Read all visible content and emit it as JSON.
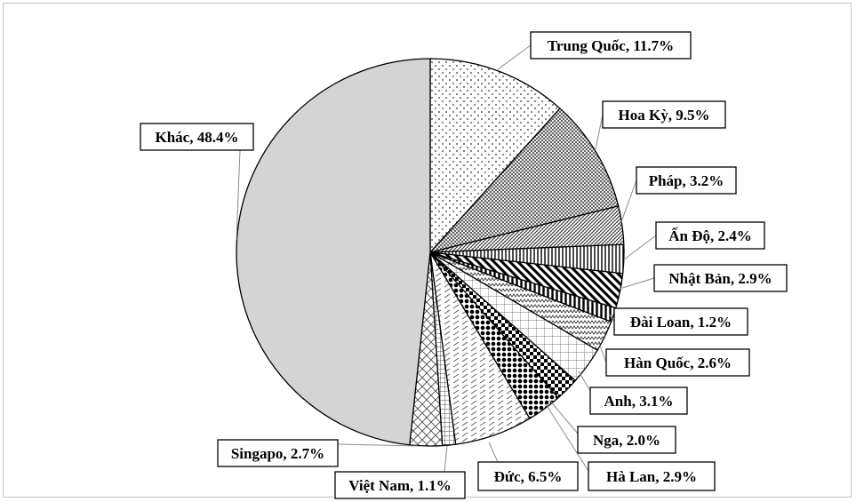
{
  "chart_data": {
    "type": "pie",
    "start_angle_deg": 0,
    "direction": "clockwise",
    "slices": [
      {
        "name": "Trung Quốc",
        "value": 11.7,
        "label": "Trung Quốc, 11.7%",
        "pattern": "dots"
      },
      {
        "name": "Hoa Kỳ",
        "value": 9.5,
        "label": "Hoa Kỳ, 9.5%",
        "pattern": "crosshatch"
      },
      {
        "name": "Pháp",
        "value": 3.2,
        "label": "Pháp, 3.2%",
        "pattern": "diag-fine"
      },
      {
        "name": "Ấn Độ",
        "value": 2.4,
        "label": "Ấn Độ, 2.4%",
        "pattern": "vertical-lines"
      },
      {
        "name": "Nhật Bản",
        "value": 2.9,
        "label": "Nhật Bản, 2.9%",
        "pattern": "wide-diagonal"
      },
      {
        "name": "Đài Loan",
        "value": 1.2,
        "label": "Đài Loan, 1.2%",
        "pattern": "vertical-bold"
      },
      {
        "name": "Hàn Quốc",
        "value": 2.6,
        "label": "Hàn Quốc, 2.6%",
        "pattern": "zigzag"
      },
      {
        "name": "Anh",
        "value": 3.1,
        "label": "Anh, 3.1%",
        "pattern": "grid"
      },
      {
        "name": "Nga",
        "value": 2.0,
        "label": "Nga, 2.0%",
        "pattern": "checker"
      },
      {
        "name": "Hà Lan",
        "value": 2.9,
        "label": "Hà Lan, 2.9%",
        "pattern": "dot-bold"
      },
      {
        "name": "Đức",
        "value": 6.5,
        "label": "Đức, 6.5%",
        "pattern": "dashed-diagonal"
      },
      {
        "name": "Việt Nam",
        "value": 1.1,
        "label": "Việt Nam, 1.1%",
        "pattern": "small-grid"
      },
      {
        "name": "Singapo",
        "value": 2.7,
        "label": "Singapo, 2.7%",
        "pattern": "diamond"
      },
      {
        "name": "Khác",
        "value": 48.4,
        "label": "Khác, 48.4%",
        "pattern": "solid-gray"
      }
    ],
    "fill_color": "#d4d4d4",
    "outline_color": "#000000"
  }
}
